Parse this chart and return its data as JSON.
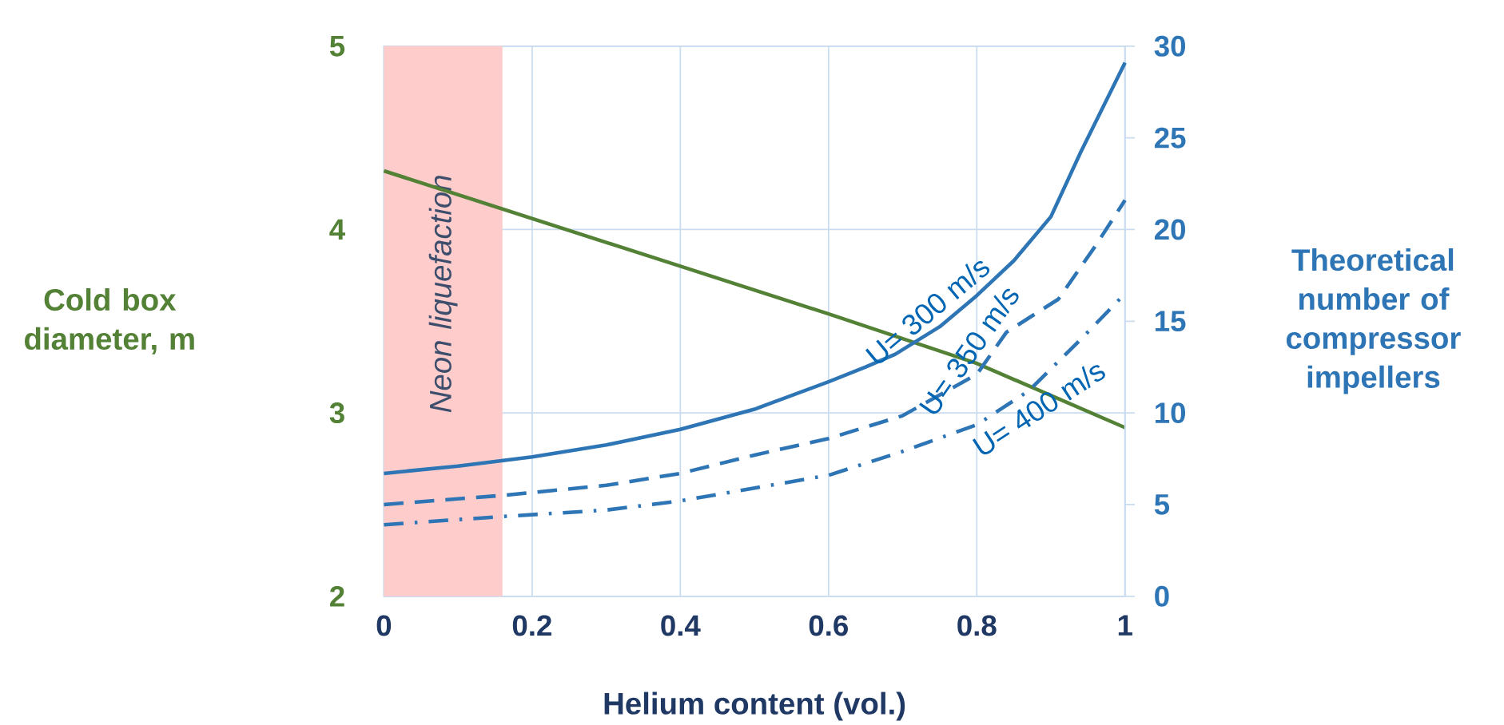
{
  "chart_data": {
    "type": "line",
    "xlabel": "Helium content (vol.)",
    "ylabel": "Cold box diameter, m",
    "y2label": "Theoretical number of compressor impellers",
    "xlim": [
      0,
      1
    ],
    "xticks": [
      0,
      0.2,
      0.4,
      0.6,
      0.8,
      1
    ],
    "ylim": [
      2,
      5
    ],
    "yticks": [
      2,
      3,
      4,
      5
    ],
    "y2lim": [
      0,
      30
    ],
    "y2ticks": [
      0,
      5,
      10,
      15,
      20,
      25,
      30
    ],
    "grid": true,
    "marker": "none",
    "bands": [
      {
        "axis": "x",
        "from": 0,
        "to": 0.16,
        "label": "Neon liquefaction",
        "color": "#ffcccc"
      }
    ],
    "series": [
      {
        "color": "#538135",
        "line_style": "solid",
        "x": [
          0,
          0.2,
          0.4,
          0.6,
          0.8,
          1
        ],
        "values": [
          4.32,
          4.06,
          3.8,
          3.54,
          3.27,
          2.92
        ]
      },
      {
        "name": "U= 300 m/s",
        "axis": "y2",
        "color": "#2e75b6",
        "line_style": "solid",
        "x": [
          0,
          0.1,
          0.2,
          0.3,
          0.4,
          0.5,
          0.6,
          0.65,
          0.69,
          0.75,
          0.8,
          0.85,
          0.9,
          0.94,
          1
        ],
        "values": [
          6.7,
          7.1,
          7.6,
          8.25,
          9.1,
          10.2,
          11.7,
          12.5,
          13.2,
          14.7,
          16.4,
          18.3,
          20.7,
          24.2,
          29.1
        ]
      },
      {
        "name": "U= 350 m/s",
        "axis": "y2",
        "color": "#2e75b6",
        "line_style": "dashed",
        "x": [
          0,
          0.16,
          0.3,
          0.4,
          0.5,
          0.6,
          0.7,
          0.8,
          0.84,
          0.91,
          0.96,
          1
        ],
        "values": [
          5.0,
          5.5,
          6.05,
          6.7,
          7.7,
          8.6,
          9.85,
          12.1,
          14.4,
          16.2,
          19.1,
          21.6
        ]
      },
      {
        "name": "U= 400 m/s",
        "axis": "y2",
        "color": "#2e75b6",
        "line_style": "dashdot",
        "x": [
          0,
          0.16,
          0.3,
          0.4,
          0.5,
          0.6,
          0.7,
          0.8,
          0.87,
          0.94,
          1
        ],
        "values": [
          3.9,
          4.35,
          4.7,
          5.2,
          5.9,
          6.6,
          7.9,
          9.35,
          11.2,
          14.0,
          16.5
        ]
      }
    ]
  }
}
